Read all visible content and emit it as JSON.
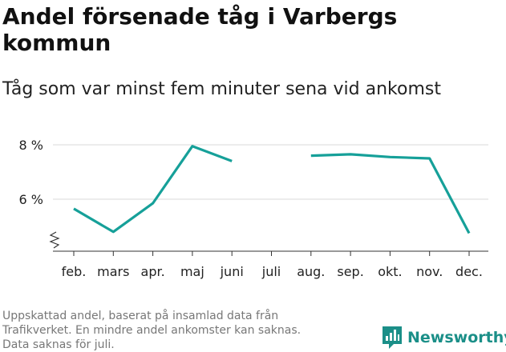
{
  "header": {
    "title": "Andel försenade tåg i Varbergs kommun",
    "subtitle": "Tåg som var minst fem minuter sena vid ankomst"
  },
  "footnote": {
    "lines": [
      "Uppskattad andel, baserat på insamlad data från",
      "Trafikverket. En mindre andel ankomster kan saknas.",
      "Data saknas för juli."
    ]
  },
  "brand": {
    "name": "Newsworthy",
    "icon": "newsworthy-logo-icon",
    "color": "#1b8f88"
  },
  "colors": {
    "line": "#16a099",
    "grid": "#d9d9d9",
    "axis": "#333333"
  },
  "chart_data": {
    "type": "line",
    "title": "Andel försenade tåg i Varbergs kommun",
    "subtitle": "Tåg som var minst fem minuter sena vid ankomst",
    "xlabel": "",
    "ylabel": "",
    "categories": [
      "feb.",
      "mars",
      "apr.",
      "maj",
      "juni",
      "juli",
      "aug.",
      "sep.",
      "okt.",
      "nov.",
      "dec."
    ],
    "series": [
      {
        "name": "Andel försenade tåg",
        "values": [
          5.65,
          4.8,
          5.85,
          7.95,
          7.4,
          null,
          7.6,
          7.65,
          7.55,
          7.5,
          4.75
        ]
      }
    ],
    "ylim": [
      4.0,
      8.0
    ],
    "yticks": [
      {
        "value": 6,
        "label": "6 %"
      },
      {
        "value": 8,
        "label": "8 %"
      }
    ],
    "y_axis_break": true,
    "grid": true
  }
}
